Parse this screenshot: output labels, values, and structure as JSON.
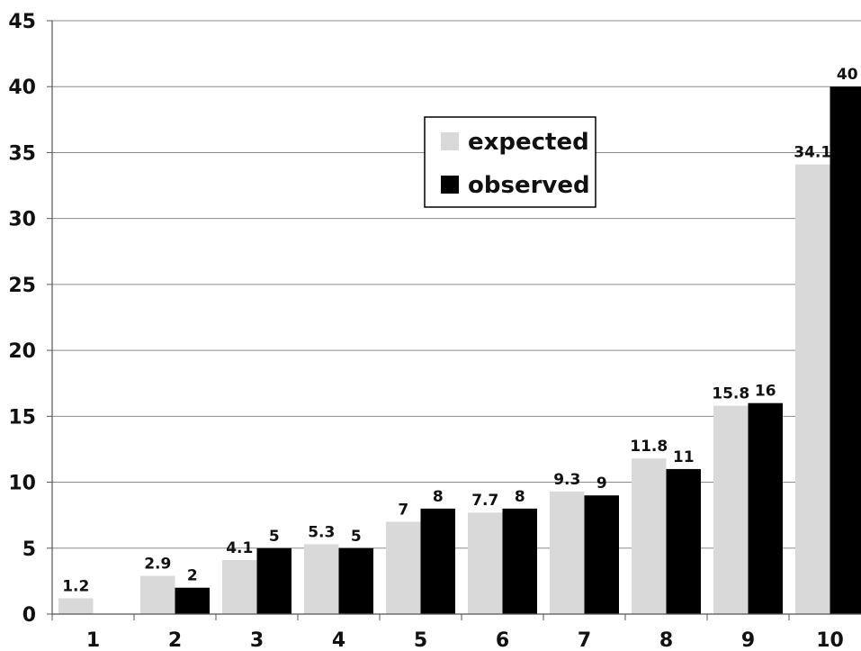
{
  "chart_data": {
    "type": "bar",
    "categories": [
      "1",
      "2",
      "3",
      "4",
      "5",
      "6",
      "7",
      "8",
      "9",
      "10"
    ],
    "series": [
      {
        "name": "expected",
        "color": "#d9d9d9",
        "values": [
          1.2,
          2.9,
          4.1,
          5.3,
          7,
          7.7,
          9.3,
          11.8,
          15.8,
          34.1
        ],
        "labels": [
          "1.2",
          "2.9",
          "4.1",
          "5.3",
          "7",
          "7.7",
          "9.3",
          "11.8",
          "15.8",
          "34.1"
        ]
      },
      {
        "name": "observed",
        "color": "#000000",
        "values": [
          0,
          2,
          5,
          5,
          8,
          8,
          9,
          11,
          16,
          40
        ],
        "labels": [
          "",
          "2",
          "5",
          "5",
          "8",
          "8",
          "9",
          "11",
          "16",
          "40"
        ]
      }
    ],
    "ylim": [
      0,
      45
    ],
    "yticks": [
      "0",
      "5",
      "10",
      "15",
      "20",
      "25",
      "30",
      "35",
      "40",
      "45"
    ],
    "grid": true,
    "legend_position": "top-center"
  }
}
